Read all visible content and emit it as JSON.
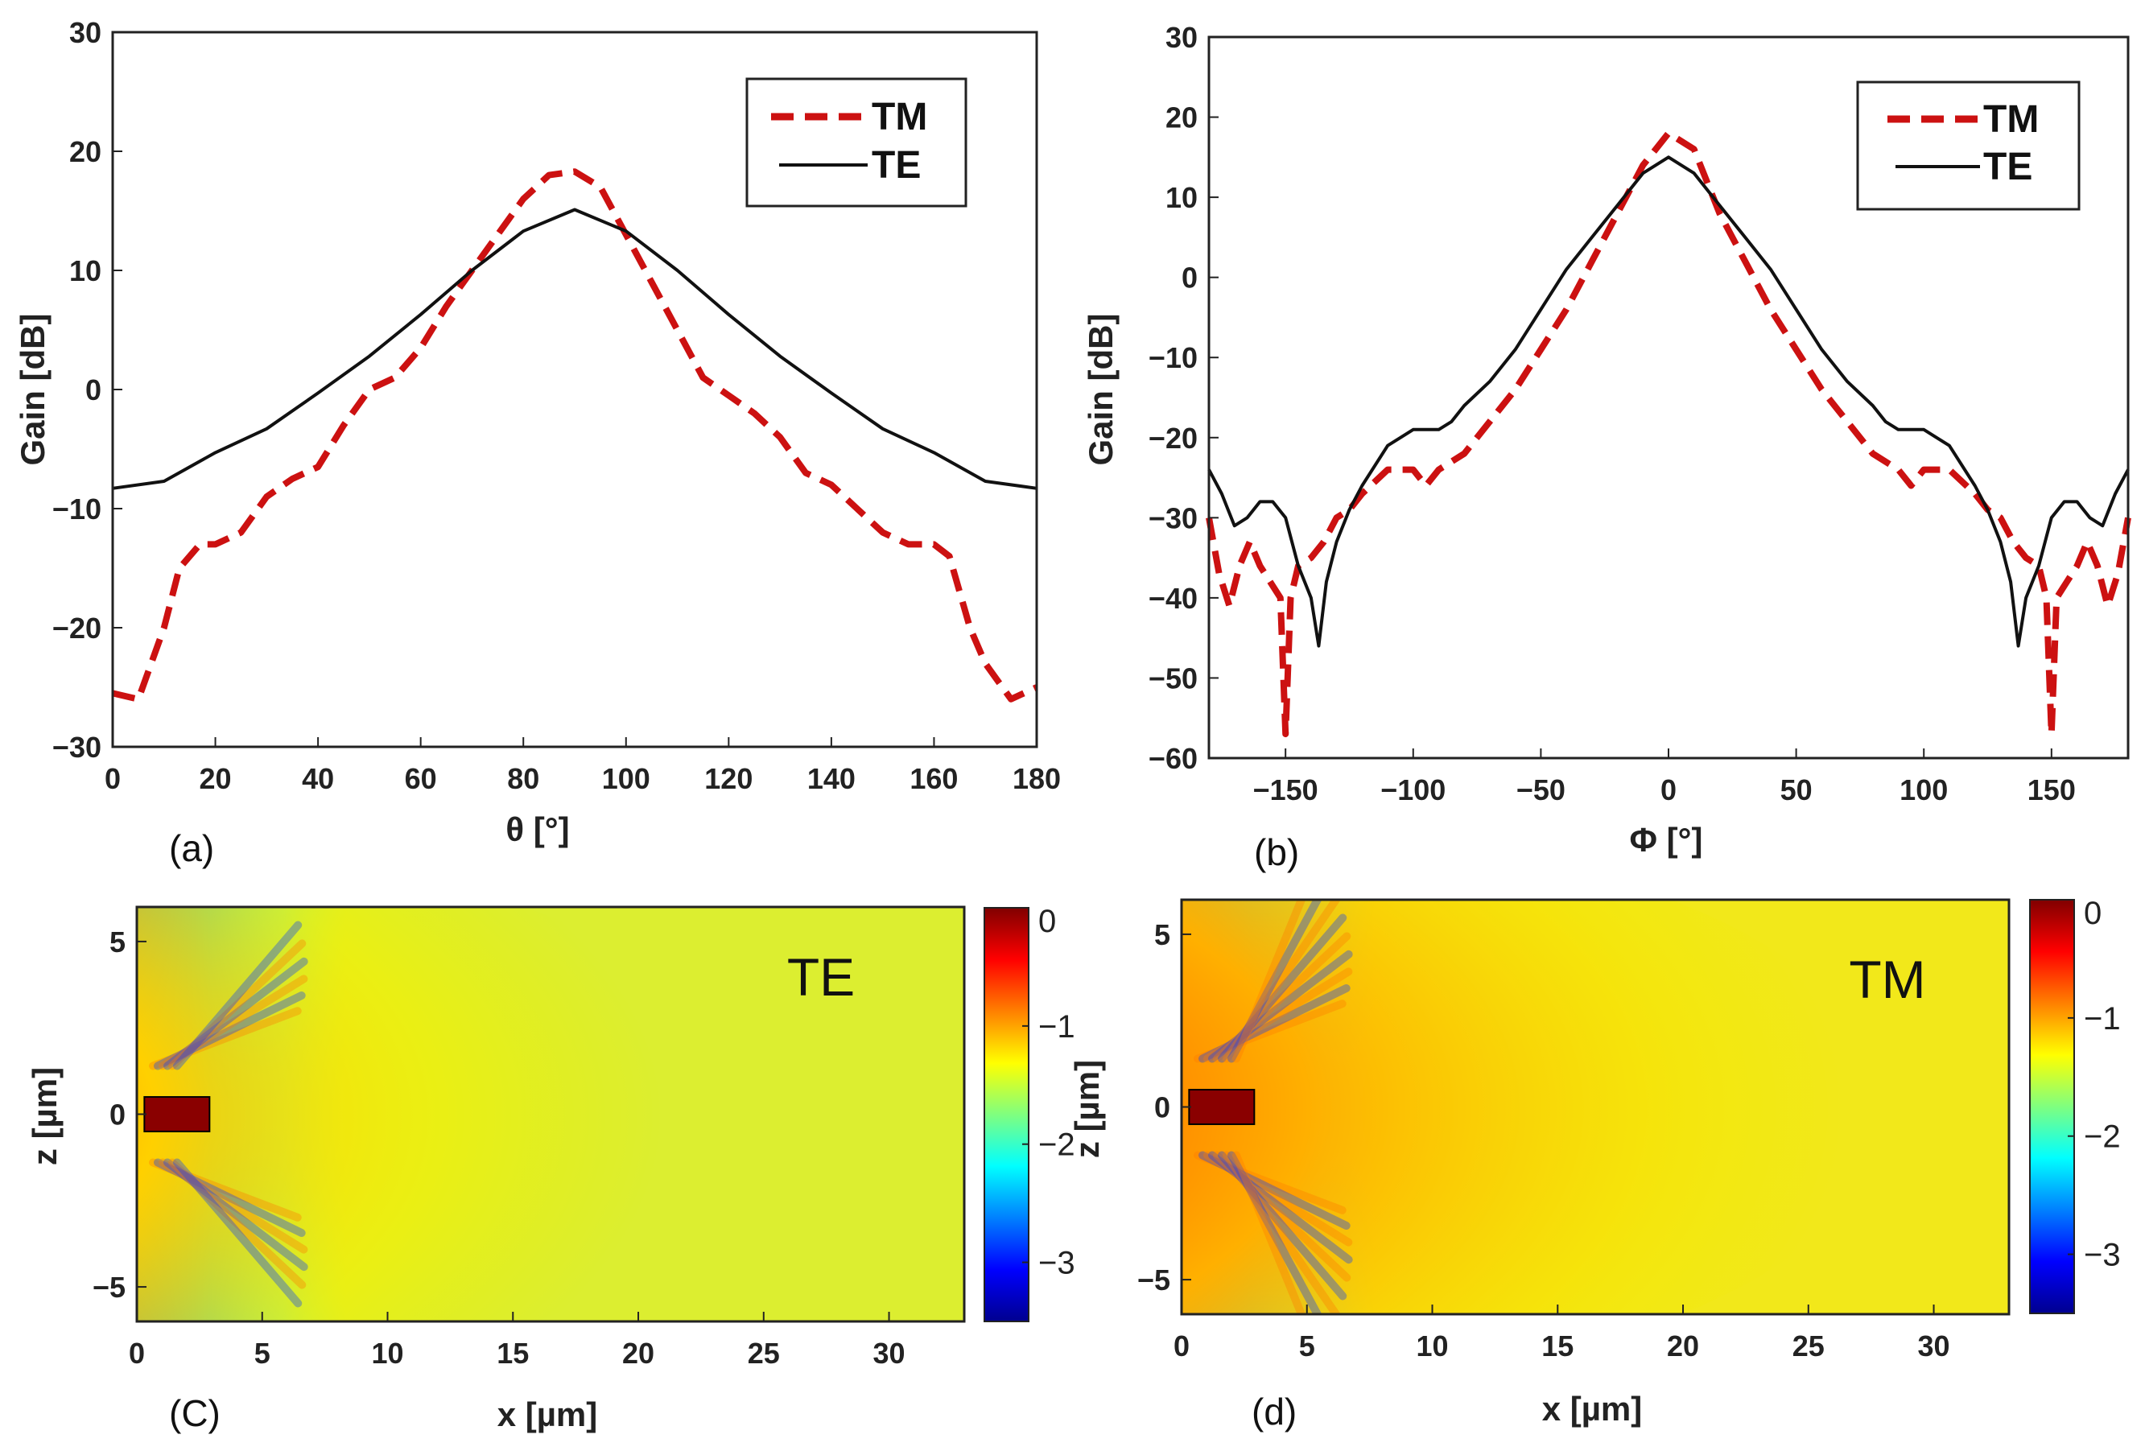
{
  "chart_data": [
    {
      "id": "a",
      "type": "line",
      "panel_label": "(a)",
      "xlabel": "θ [°]",
      "ylabel": "Gain [dB]",
      "xlim": [
        0,
        180
      ],
      "ylim": [
        -30,
        30
      ],
      "xticks": [
        0,
        20,
        40,
        60,
        80,
        100,
        120,
        140,
        160,
        180
      ],
      "yticks": [
        -30,
        -20,
        -10,
        0,
        10,
        20,
        30
      ],
      "xtick_labels": [
        "0",
        "20",
        "40",
        "60",
        "80",
        "100",
        "120",
        "140",
        "160",
        "180"
      ],
      "ytick_labels": [
        "−30",
        "−20",
        "−10",
        "0",
        "10",
        "20",
        "30"
      ],
      "legend_position": "top-right",
      "series": [
        {
          "name": "TM",
          "style": "dashed",
          "color": "#cc1111",
          "x": [
            0,
            5,
            10,
            13,
            17,
            20,
            25,
            30,
            35,
            40,
            45,
            50,
            55,
            60,
            65,
            70,
            75,
            80,
            85,
            90,
            95,
            100,
            105,
            110,
            115,
            120,
            125,
            130,
            135,
            140,
            145,
            150,
            155,
            160,
            163,
            167,
            170,
            175,
            180
          ],
          "y": [
            -25.5,
            -26,
            -20,
            -15,
            -13,
            -13,
            -12,
            -9,
            -7.5,
            -6.5,
            -3,
            0,
            1,
            3.5,
            7,
            10,
            13,
            16,
            18,
            18.3,
            17,
            13,
            9,
            5,
            1,
            -0.5,
            -2,
            -4,
            -7,
            -8,
            -10,
            -12,
            -13,
            -13,
            -14,
            -20,
            -23,
            -26,
            -25
          ]
        },
        {
          "name": "TE",
          "style": "solid",
          "color": "#111111",
          "x": [
            0,
            10,
            20,
            30,
            40,
            50,
            60,
            70,
            80,
            90,
            100,
            110,
            120,
            130,
            140,
            150,
            160,
            170,
            180
          ],
          "y": [
            -8.3,
            -7.7,
            -5.3,
            -3.3,
            -0.3,
            2.8,
            6.3,
            10,
            13.3,
            15.1,
            13.3,
            10,
            6.3,
            2.8,
            -0.3,
            -3.3,
            -5.3,
            -7.7,
            -8.3
          ]
        }
      ]
    },
    {
      "id": "b",
      "type": "line",
      "panel_label": "(b)",
      "xlabel": "Φ [°]",
      "ylabel": "Gain [dB]",
      "xlim": [
        -180,
        180
      ],
      "ylim": [
        -60,
        30
      ],
      "xticks": [
        -150,
        -100,
        -50,
        0,
        50,
        100,
        150
      ],
      "yticks": [
        -60,
        -50,
        -40,
        -30,
        -20,
        -10,
        0,
        10,
        20,
        30
      ],
      "xtick_labels": [
        "−150",
        "−100",
        "−50",
        "0",
        "50",
        "100",
        "150"
      ],
      "ytick_labels": [
        "−60",
        "−50",
        "−40",
        "−30",
        "−20",
        "−10",
        "0",
        "10",
        "20",
        "30"
      ],
      "legend_position": "top-right",
      "series": [
        {
          "name": "TM",
          "style": "dashed",
          "color": "#cc1111",
          "x": [
            -180,
            -176,
            -172,
            -168,
            -164,
            -160,
            -156,
            -152,
            -150,
            -148,
            -145,
            -140,
            -135,
            -130,
            -125,
            -120,
            -110,
            -100,
            -95,
            -90,
            -80,
            -70,
            -60,
            -50,
            -40,
            -30,
            -20,
            -10,
            0,
            10,
            20,
            30,
            40,
            50,
            60,
            70,
            80,
            90,
            95,
            100,
            110,
            120,
            125,
            130,
            135,
            140,
            145,
            148,
            150,
            152,
            156,
            160,
            164,
            168,
            172,
            176,
            180
          ],
          "y": [
            -30,
            -37,
            -41,
            -36,
            -33,
            -36,
            -38,
            -40,
            -57,
            -40,
            -36,
            -35,
            -33,
            -30,
            -29,
            -27,
            -24,
            -24,
            -26,
            -24,
            -22,
            -18,
            -14,
            -9,
            -4,
            2,
            8,
            14,
            18,
            16,
            8,
            2,
            -4,
            -9,
            -14,
            -18,
            -22,
            -24,
            -26,
            -24,
            -24,
            -27,
            -29,
            -30,
            -33,
            -35,
            -36,
            -40,
            -57,
            -40,
            -38,
            -36,
            -33,
            -36,
            -41,
            -37,
            -30
          ]
        },
        {
          "name": "TE",
          "style": "solid",
          "color": "#111111",
          "x": [
            -180,
            -175,
            -170,
            -165,
            -160,
            -155,
            -150,
            -145,
            -140,
            -137,
            -134,
            -130,
            -125,
            -120,
            -110,
            -105,
            -100,
            -95,
            -90,
            -85,
            -80,
            -70,
            -60,
            -50,
            -40,
            -30,
            -20,
            -10,
            0,
            10,
            20,
            30,
            40,
            50,
            60,
            70,
            80,
            85,
            90,
            95,
            100,
            105,
            110,
            120,
            125,
            130,
            134,
            137,
            140,
            145,
            150,
            155,
            160,
            165,
            170,
            175,
            180
          ],
          "y": [
            -24,
            -27,
            -31,
            -30,
            -28,
            -28,
            -30,
            -36,
            -40,
            -46,
            -38,
            -33,
            -29,
            -26,
            -21,
            -20,
            -19,
            -19,
            -19,
            -18,
            -16,
            -13,
            -9,
            -4,
            1,
            5,
            9,
            13,
            15,
            13,
            9,
            5,
            1,
            -4,
            -9,
            -13,
            -16,
            -18,
            -19,
            -19,
            -19,
            -20,
            -21,
            -26,
            -29,
            -33,
            -38,
            -46,
            -40,
            -36,
            -30,
            -28,
            -28,
            -30,
            -31,
            -27,
            -24
          ]
        }
      ]
    },
    {
      "id": "c",
      "type": "heatmap",
      "panel_label": "(C)",
      "mode_label": "TE",
      "xlabel": "x [µm]",
      "ylabel": "z [µm]",
      "xlim": [
        0,
        33
      ],
      "ylim": [
        -6,
        6
      ],
      "xticks": [
        0,
        5,
        10,
        15,
        20,
        25,
        30
      ],
      "yticks": [
        -5,
        0,
        5
      ],
      "xtick_labels": [
        "0",
        "5",
        "10",
        "15",
        "20",
        "25",
        "30"
      ],
      "ytick_labels": [
        "−5",
        "0",
        "5"
      ],
      "colorbar_range": [
        -3.5,
        0
      ],
      "colorbar_ticks": [
        0,
        -1,
        -2,
        -3
      ],
      "colorbar_tick_labels": [
        "0",
        "−1",
        "−2",
        "−3"
      ],
      "colormap": "jet",
      "waveguide_extent_um": {
        "x": [
          0.3,
          2.9
        ],
        "z": [
          -0.5,
          0.5
        ]
      }
    },
    {
      "id": "d",
      "type": "heatmap",
      "panel_label": "(d)",
      "mode_label": "TM",
      "xlabel": "x [µm]",
      "ylabel": "z [µm]",
      "xlim": [
        0,
        33
      ],
      "ylim": [
        -6,
        6
      ],
      "xticks": [
        0,
        5,
        10,
        15,
        20,
        25,
        30
      ],
      "yticks": [
        -5,
        0,
        5
      ],
      "xtick_labels": [
        "0",
        "5",
        "10",
        "15",
        "20",
        "25",
        "30"
      ],
      "ytick_labels": [
        "−5",
        "0",
        "5"
      ],
      "colorbar_range": [
        -3.5,
        0
      ],
      "colorbar_ticks": [
        0,
        -1,
        -2,
        -3
      ],
      "colorbar_tick_labels": [
        "0",
        "−1",
        "−2",
        "−3"
      ],
      "colormap": "jet",
      "waveguide_extent_um": {
        "x": [
          0.3,
          2.9
        ],
        "z": [
          -0.5,
          0.5
        ]
      }
    }
  ]
}
